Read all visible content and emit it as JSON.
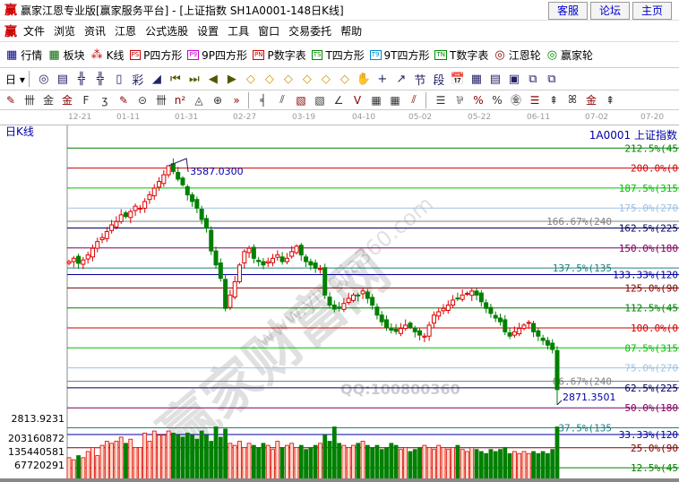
{
  "window": {
    "logo": "赢",
    "title": "赢家江恩专业版[赢家服务平台] - [上证指数  SH1A0001-148日K线]",
    "buttons": [
      "客服",
      "论坛",
      "主页"
    ]
  },
  "menu": {
    "logo": "赢",
    "items": [
      "文件",
      "浏览",
      "资讯",
      "江恩",
      "公式选股",
      "设置",
      "工具",
      "窗口",
      "交易委托",
      "帮助"
    ]
  },
  "toolbar1": [
    {
      "icon": "grid-icon",
      "label": "行情"
    },
    {
      "icon": "blocks-icon",
      "label": "板块"
    },
    {
      "icon": "kline-icon",
      "label": "K线"
    },
    {
      "icon": "PS",
      "label": "P四方形"
    },
    {
      "icon": "P9",
      "label": "9P四方形"
    },
    {
      "icon": "PN",
      "label": "P数字表"
    },
    {
      "icon": "TS",
      "label": "T四方形"
    },
    {
      "icon": "T9",
      "label": "9T四方形"
    },
    {
      "icon": "TN",
      "label": "T数字表"
    },
    {
      "icon": "target-icon",
      "label": "江恩轮"
    },
    {
      "icon": "big-icon",
      "label": "赢家轮"
    }
  ],
  "toolbar2": {
    "period": "日",
    "icons": [
      "◎",
      "▤",
      "╬",
      "╬",
      "▯",
      "彩",
      "◢",
      "⏮",
      "⏭",
      "◀",
      "▶",
      "◇",
      "◇",
      "◇",
      "◇",
      "◇",
      "◇",
      "✋",
      "+",
      "↗",
      "节",
      "段",
      "📅",
      "▦",
      "▤",
      "▣",
      "⧉",
      "⧉"
    ]
  },
  "toolbar3": {
    "icons": [
      "✎",
      "卌",
      "金",
      "金",
      "F",
      "ʒ",
      "✎",
      "⊝",
      "卌",
      "n²",
      "◬",
      "⊕",
      "»",
      "╡",
      "⫽",
      "▧",
      "▧",
      "∠",
      "V",
      "▦",
      "▦",
      "⫽",
      "☰",
      "⅌",
      "%",
      "%",
      "㊎",
      "☰",
      "⇞",
      "ꕤ",
      "金",
      "⇞"
    ]
  },
  "dates": [
    "12-21",
    "01-11",
    "01-31",
    "02-27",
    "03-19",
    "04-10",
    "05-02",
    "05-22",
    "06-11",
    "07-02",
    "07-20"
  ],
  "chart_label": "日K线",
  "code_label": "1A0001  上证指数",
  "annotations": {
    "high": "3587.0300",
    "low": "2871.3501"
  },
  "left_axis": [
    "2813.9231",
    "203160872",
    "135440581",
    "67720291"
  ],
  "watermark": {
    "main": "赢家财富网",
    "url": "www.yingjia360.com",
    "qq": "QQ:100800360"
  },
  "chart_data": {
    "type": "candlestick",
    "high": 3587.03,
    "low": 2871.3501,
    "closes": [
      3300,
      3310,
      3295,
      3305,
      3320,
      3340,
      3360,
      3372,
      3390,
      3410,
      3420,
      3440,
      3435,
      3450,
      3466,
      3460,
      3480,
      3500,
      3520,
      3540,
      3560,
      3587,
      3570,
      3547,
      3530,
      3500,
      3480,
      3460,
      3426,
      3400,
      3332,
      3290,
      3250,
      3160,
      3200,
      3240,
      3290,
      3330,
      3340,
      3310,
      3300,
      3290,
      3300,
      3310,
      3320,
      3300,
      3310,
      3330,
      3346,
      3320,
      3300,
      3290,
      3280,
      3279,
      3200,
      3170,
      3158,
      3160,
      3175,
      3190,
      3200,
      3198,
      3212,
      3190,
      3170,
      3140,
      3120,
      3104,
      3095,
      3091,
      3100,
      3110,
      3104,
      3090,
      3080,
      3077,
      3110,
      3140,
      3150,
      3160,
      3170,
      3185,
      3190,
      3200,
      3205,
      3212,
      3200,
      3180,
      3160,
      3145,
      3131,
      3120,
      3090,
      3077,
      3090,
      3100,
      3110,
      3118,
      3090,
      3077,
      3064,
      3050,
      3037,
      2917
    ],
    "volumes": [
      110000000.0,
      100000000.0,
      120000000.0,
      110000000.0,
      140000000.0,
      160000000.0,
      120000000.0,
      170000000.0,
      190000000.0,
      180000000.0,
      190000000.0,
      210000000.0,
      180000000.0,
      200000000.0,
      160000000.0,
      160000000.0,
      230000000.0,
      190000000.0,
      240000000.0,
      220000000.0,
      220000000.0,
      240000000.0,
      230000000.0,
      220000000.0,
      210000000.0,
      230000000.0,
      220000000.0,
      200000000.0,
      240000000.0,
      220000000.0,
      190000000.0,
      260000000.0,
      210000000.0,
      250000000.0,
      180000000.0,
      170000000.0,
      190000000.0,
      160000000.0,
      180000000.0,
      170000000.0,
      160000000.0,
      180000000.0,
      170000000.0,
      150000000.0,
      190000000.0,
      160000000.0,
      170000000.0,
      180000000.0,
      160000000.0,
      170000000.0,
      150000000.0,
      160000000.0,
      170000000.0,
      180000000.0,
      220000000.0,
      190000000.0,
      260000000.0,
      180000000.0,
      170000000.0,
      160000000.0,
      170000000.0,
      180000000.0,
      190000000.0,
      170000000.0,
      160000000.0,
      170000000.0,
      150000000.0,
      160000000.0,
      180000000.0,
      170000000.0,
      150000000.0,
      160000000.0,
      140000000.0,
      150000000.0,
      160000000.0,
      170000000.0,
      160000000.0,
      150000000.0,
      170000000.0,
      160000000.0,
      150000000.0,
      160000000.0,
      170000000.0,
      150000000.0,
      140000000.0,
      160000000.0,
      150000000.0,
      140000000.0,
      130000000.0,
      150000000.0,
      140000000.0,
      150000000.0,
      160000000.0,
      130000000.0,
      140000000.0,
      130000000.0,
      140000000.0,
      130000000.0,
      140000000.0,
      130000000.0,
      140000000.0,
      130000000.0,
      150000000.0,
      260000000.0
    ],
    "levels": [
      {
        "pct": 212.5,
        "label": "212.5%(45",
        "color": "#008000"
      },
      {
        "pct": 200,
        "label": "200.0%(0",
        "color": "#d00000"
      },
      {
        "pct": 187.5,
        "label": "187.5%(315",
        "color": "#00c000"
      },
      {
        "pct": 175,
        "label": "175.0%(270",
        "color": "#a0c0e0"
      },
      {
        "pct": 166.67,
        "label": "166.67%(240",
        "color": "#808080"
      },
      {
        "pct": 162.5,
        "label": "162.5%(225",
        "color": "#000060"
      },
      {
        "pct": 150,
        "label": "150.0%(180",
        "color": "#800060"
      },
      {
        "pct": 137.5,
        "label": "137.5%(135",
        "color": "#208080"
      },
      {
        "pct": 133.33,
        "label": "133.33%(120",
        "color": "#0000a0"
      },
      {
        "pct": 125,
        "label": "125.0%(90",
        "color": "#800000"
      },
      {
        "pct": 112.5,
        "label": "112.5%(45",
        "color": "#008000"
      },
      {
        "pct": 100,
        "label": "100.0%(0",
        "color": "#d00000"
      },
      {
        "pct": 87.5,
        "label": "87.5%(315",
        "color": "#00c000"
      },
      {
        "pct": 75,
        "label": "75.0%(270",
        "color": "#a0c0e0"
      },
      {
        "pct": 66.67,
        "label": "66.67%(240",
        "color": "#808080"
      },
      {
        "pct": 62.5,
        "label": "62.5%(225",
        "color": "#000060"
      },
      {
        "pct": 50,
        "label": "50.0%(180",
        "color": "#800060"
      },
      {
        "pct": 37.5,
        "label": "37.5%(135",
        "color": "#208080"
      },
      {
        "pct": 33.33,
        "label": "33.33%(120",
        "color": "#0000a0"
      },
      {
        "pct": 25,
        "label": "25.0%(90",
        "color": "#800000"
      },
      {
        "pct": 12.5,
        "label": "12.5%(45",
        "color": "#008000"
      }
    ],
    "colors": {
      "up": "#e00000",
      "up_fill": "#ffd8c8",
      "down": "#008000"
    }
  }
}
